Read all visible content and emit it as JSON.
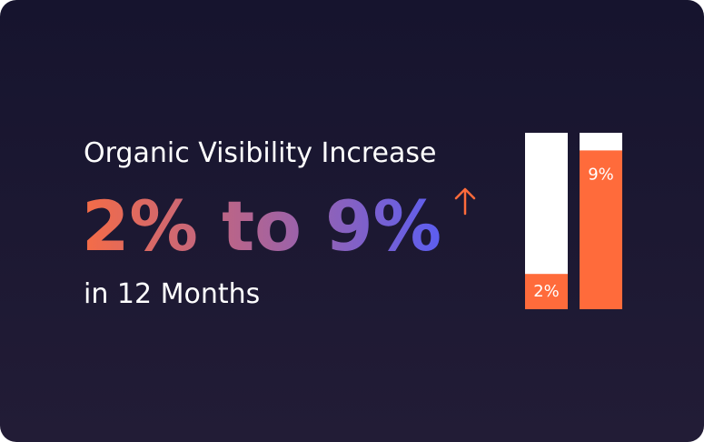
{
  "chart_data": {
    "type": "bar",
    "title": "Organic Visibility Increase",
    "headline": "2% to 9%",
    "subtitle": "in 12 Months",
    "categories": [
      null,
      null
    ],
    "values": [
      2,
      9
    ],
    "value_labels": [
      "2%",
      "9%"
    ],
    "color": "#ff6b3b",
    "ylim": [
      0,
      10
    ]
  }
}
